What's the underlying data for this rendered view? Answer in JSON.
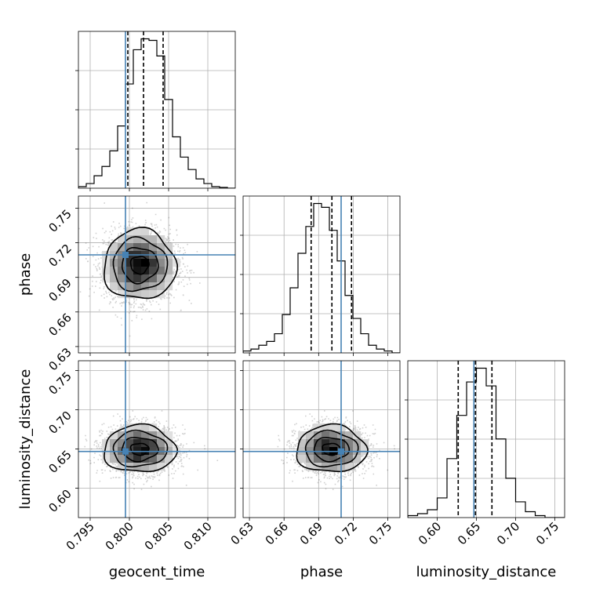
{
  "chart_data": {
    "type": "corner",
    "title": "",
    "parameters": [
      "geocent_time",
      "phase",
      "luminosity_distance"
    ],
    "truth": {
      "color": "#4682b4",
      "values": [
        0.7995,
        0.7095,
        0.6468
      ]
    },
    "quantile_color": "#000000",
    "grid": true,
    "panels": {
      "geocent_time": {
        "range": [
          0.7935,
          0.8135
        ],
        "ticks": [
          "0.795",
          "0.800",
          "0.805",
          "0.810"
        ],
        "tick_values": [
          0.795,
          0.8,
          0.805,
          0.81
        ],
        "quantiles": [
          0.7998,
          0.8018,
          0.8043
        ],
        "hist_counts": [
          1,
          3,
          8,
          14,
          24,
          40,
          67,
          89,
          96,
          95,
          85,
          57,
          33,
          20,
          12,
          6,
          3,
          1,
          0.5,
          0
        ]
      },
      "phase": {
        "range": [
          0.6245,
          0.7605
        ],
        "ticks": [
          "0.63",
          "0.66",
          "0.69",
          "0.72",
          "0.75"
        ],
        "tick_values": [
          0.63,
          0.66,
          0.69,
          0.72,
          0.75
        ],
        "quantiles": [
          0.6835,
          0.7015,
          0.7185
        ],
        "hist_counts": [
          1,
          2,
          4,
          6,
          10,
          20,
          34,
          52,
          66,
          78,
          76,
          64,
          48,
          30,
          18,
          10,
          4,
          2,
          1,
          0
        ]
      },
      "luminosity_distance": {
        "range": [
          0.5625,
          0.7625
        ],
        "ticks": [
          "0.60",
          "0.65",
          "0.70",
          "0.75"
        ],
        "tick_values": [
          0.6,
          0.65,
          0.7,
          0.75
        ],
        "quantiles": [
          0.6268,
          0.6488,
          0.6698
        ],
        "hist_counts": [
          1,
          2,
          4,
          10,
          30,
          52,
          69,
          76,
          67,
          40,
          20,
          8,
          3,
          1,
          0,
          0
        ]
      }
    },
    "pairs": [
      {
        "x": "geocent_time",
        "y": "phase",
        "mean": [
          0.8013,
          0.7008
        ],
        "sigma": [
          0.0023,
          0.0152
        ],
        "contour_levels": [
          0.5,
          1.0,
          1.5,
          2.0
        ]
      },
      {
        "x": "geocent_time",
        "y": "luminosity_distance",
        "mean": [
          0.8013,
          0.6498
        ],
        "sigma": [
          0.0023,
          0.015
        ],
        "contour_levels": [
          0.5,
          1.0,
          1.5,
          2.0
        ]
      },
      {
        "x": "phase",
        "y": "luminosity_distance",
        "mean": [
          0.7008,
          0.6498
        ],
        "sigma": [
          0.0152,
          0.015
        ],
        "contour_levels": [
          0.5,
          1.0,
          1.5,
          2.0
        ]
      }
    ]
  }
}
